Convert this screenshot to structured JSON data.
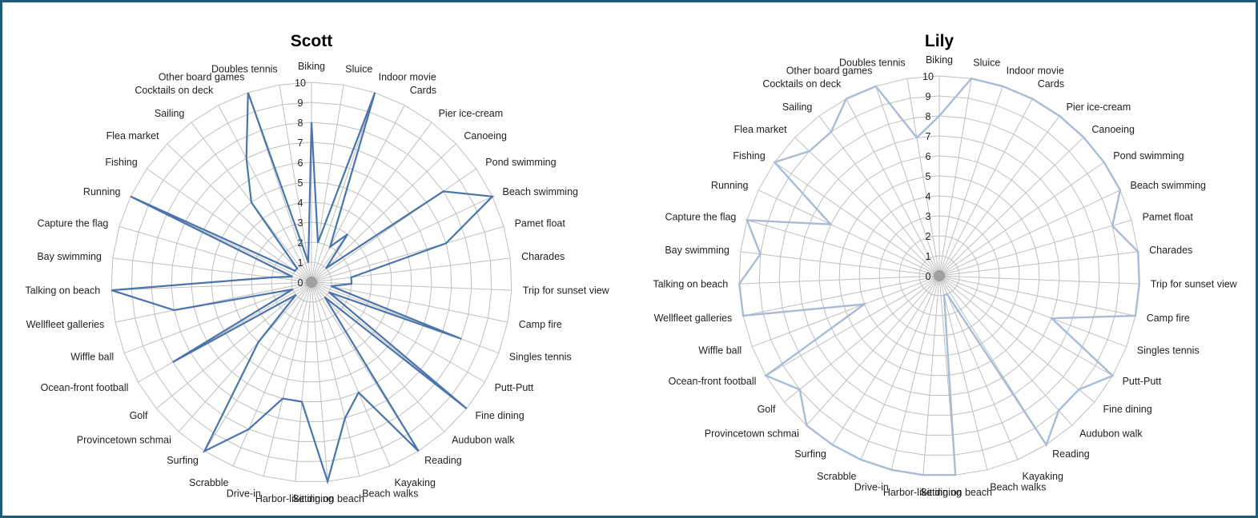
{
  "colors": {
    "scott": "#4a74ac",
    "lily": "#a9bbd6",
    "frame": "#1f5c7a"
  },
  "chart_data": [
    {
      "type": "radar",
      "title": "Scott",
      "rmin": 0,
      "rmax": 10,
      "ticks": [
        0,
        1,
        2,
        3,
        4,
        5,
        6,
        7,
        8,
        9,
        10
      ],
      "categories": [
        "Biking",
        "Sluice",
        "Indoor movie",
        "Cards",
        "Pier ice-cream",
        "Canoeing",
        "Pond swimming",
        "Beach swimming",
        "Pamet float",
        "Charades",
        "Trip for sunset view",
        "Camp fire",
        "Singles tennis",
        "Putt-Putt",
        "Fine dining",
        "Audubon walk",
        "Reading",
        "Kayaking",
        "Beach walks",
        "Sitting on beach",
        "Harbor-like dining",
        "Drive-in",
        "Scrabble",
        "Surfing",
        "Provincetown schmai",
        "Golf",
        "Ocean-front football",
        "Wiffle ball",
        "Wellfleet galleries",
        "Talking on beach",
        "Bay swimming",
        "Capture the flag",
        "Running",
        "Fishing",
        "Flea market",
        "Sailing",
        "Cocktails on deck",
        "Other board games",
        "Doubles tennis"
      ],
      "series": [
        {
          "values": [
            8,
            2,
            10,
            2,
            3,
            1,
            8,
            10,
            7,
            2,
            2,
            1,
            8,
            1,
            10,
            1,
            10,
            6,
            7,
            10,
            6,
            6,
            8,
            10,
            4,
            1,
            8,
            1,
            7,
            10,
            2,
            1,
            10,
            1,
            1,
            5,
            7,
            10,
            1
          ]
        }
      ]
    },
    {
      "type": "radar",
      "title": "Lily",
      "rmin": 0,
      "rmax": 10,
      "ticks": [
        0,
        1,
        2,
        3,
        4,
        5,
        6,
        7,
        8,
        9,
        10
      ],
      "categories": [
        "Biking",
        "Sluice",
        "Indoor movie",
        "Cards",
        "Pier ice-cream",
        "Canoeing",
        "Pond swimming",
        "Beach swimming",
        "Pamet float",
        "Charades",
        "Trip for sunset view",
        "Camp fire",
        "Singles tennis",
        "Putt-Putt",
        "Fine dining",
        "Audubon walk",
        "Reading",
        "Kayaking",
        "Beach walks",
        "Sitting on beach",
        "Harbor-like dining",
        "Drive-in",
        "Scrabble",
        "Surfing",
        "Provincetown schmai",
        "Golf",
        "Ocean-front football",
        "Wiffle ball",
        "Wellfleet galleries",
        "Talking on beach",
        "Bay swimming",
        "Capture the flag",
        "Running",
        "Fishing",
        "Flea market",
        "Sailing",
        "Cocktails on deck",
        "Other board games",
        "Doubles tennis"
      ],
      "series": [
        {
          "values": [
            8,
            10,
            10,
            10,
            10,
            10,
            10,
            10,
            9,
            10,
            10,
            10,
            6,
            10,
            9,
            9,
            10,
            1,
            1,
            10,
            10,
            10,
            10,
            10,
            10,
            9,
            10,
            4,
            10,
            10,
            9,
            10,
            6,
            10,
            9,
            9,
            10,
            10,
            7
          ]
        }
      ]
    }
  ]
}
